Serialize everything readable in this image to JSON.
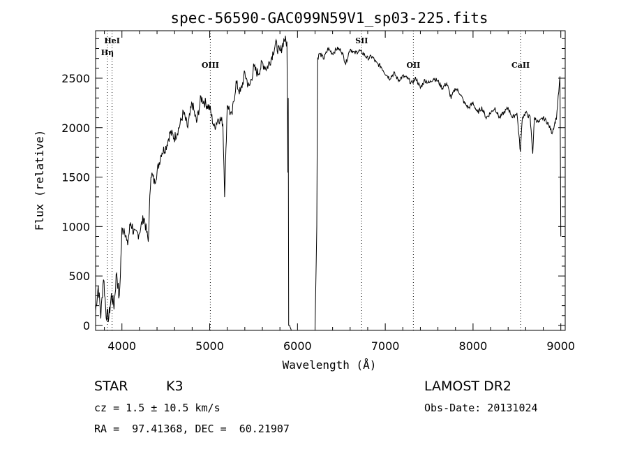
{
  "chart_data": {
    "type": "line",
    "title": "spec-56590-GAC099N59V1_sp03-225.fits",
    "xlabel": "Wavelength (Å)",
    "ylabel": "Flux (relative)",
    "xlim": [
      3700,
      9050
    ],
    "ylim": [
      -50,
      2980
    ],
    "xticks": [
      4000,
      5000,
      6000,
      7000,
      8000,
      9000
    ],
    "yticks": [
      0,
      500,
      1000,
      1500,
      2000,
      2500
    ],
    "grid": false,
    "series": [
      {
        "x": [
          3700,
          3730,
          3760,
          3790,
          3820,
          3850,
          3880,
          3910,
          3940,
          3970,
          4000,
          4030,
          4060,
          4100,
          4150,
          4200,
          4250,
          4300,
          4330,
          4370,
          4400,
          4450,
          4500,
          4550,
          4600,
          4650,
          4700,
          4750,
          4800,
          4850,
          4900,
          4950,
          5000,
          5050,
          5100,
          5150,
          5170,
          5185,
          5200,
          5250,
          5300,
          5350,
          5400,
          5450,
          5500,
          5550,
          5600,
          5650,
          5700,
          5750,
          5800,
          5850,
          5880,
          5890,
          5895,
          5900,
          5910,
          5930,
          5950,
          6000,
          6100,
          6200,
          6220,
          6230,
          6250,
          6300,
          6350,
          6400,
          6450,
          6500,
          6550,
          6600,
          6650,
          6700,
          6750,
          6800,
          6850,
          6900,
          6950,
          7000,
          7050,
          7100,
          7150,
          7200,
          7250,
          7300,
          7350,
          7400,
          7450,
          7500,
          7550,
          7600,
          7650,
          7700,
          7750,
          7800,
          7850,
          7900,
          7950,
          8000,
          8050,
          8100,
          8150,
          8200,
          8250,
          8300,
          8350,
          8400,
          8450,
          8500,
          8540,
          8560,
          8600,
          8650,
          8680,
          8700,
          8750,
          8800,
          8850,
          8900,
          8950,
          8970,
          8990,
          9000
        ],
        "y": [
          150,
          400,
          100,
          500,
          120,
          80,
          300,
          200,
          550,
          250,
          950,
          1000,
          800,
          1050,
          900,
          950,
          1100,
          850,
          1550,
          1450,
          1550,
          1750,
          1800,
          1950,
          1900,
          2000,
          2150,
          2000,
          2250,
          2050,
          2300,
          2250,
          2200,
          2000,
          2100,
          2050,
          1350,
          1750,
          2250,
          2100,
          2450,
          2350,
          2550,
          2400,
          2600,
          2550,
          2650,
          2600,
          2700,
          2850,
          2750,
          2900,
          2850,
          1600,
          2300,
          0,
          0,
          -50,
          -50,
          -50,
          -50,
          -50,
          1000,
          2700,
          2750,
          2700,
          2800,
          2750,
          2800,
          2780,
          2650,
          2800,
          2750,
          2780,
          2750,
          2700,
          2720,
          2650,
          2620,
          2550,
          2500,
          2550,
          2480,
          2520,
          2500,
          2450,
          2500,
          2400,
          2480,
          2450,
          2500,
          2470,
          2400,
          2450,
          2300,
          2400,
          2350,
          2250,
          2200,
          2250,
          2150,
          2200,
          2100,
          2150,
          2200,
          2100,
          2150,
          2200,
          2100,
          2150,
          1750,
          2100,
          2150,
          2100,
          1750,
          2100,
          2050,
          2100,
          2050,
          1950,
          2100,
          2300,
          2500,
          900
        ]
      }
    ],
    "line_markers": [
      {
        "label": "HeI",
        "x": 3888
      },
      {
        "label": "Hη",
        "x": 3835
      },
      {
        "label": "OIII",
        "x": 5007
      },
      {
        "label": "OII",
        "x": 7320
      },
      {
        "label": "SII",
        "x": 6731
      },
      {
        "label": "CaII",
        "x": 8542
      }
    ]
  },
  "info": {
    "object_class": "STAR",
    "subclass": "K3",
    "survey": "LAMOST DR2",
    "cz": "cz = 1.5 ± 10.5 km/s",
    "obs_date": "Obs-Date: 20131024",
    "coords": "RA =  97.41368, DEC =  60.21907"
  }
}
